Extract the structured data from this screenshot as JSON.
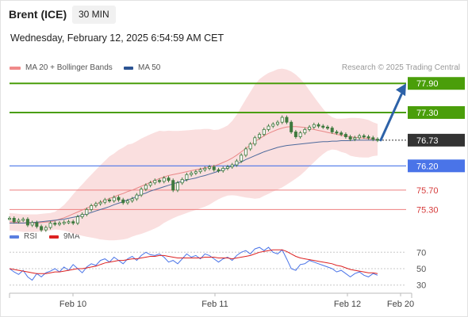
{
  "header": {
    "instrument": "Brent (ICE)",
    "timeframe": "30 MIN",
    "datetime": "Wednesday, February 12, 2025 6:54:59 AM CET",
    "credit": "Research © 2025 Trading Central"
  },
  "colors": {
    "resistance": "#4a9e0a",
    "support_blue": "#4a74e8",
    "support_red": "#ee7f7f",
    "bb_fill": "#fadfdf",
    "ma20": "#e98787",
    "ma50": "#4e6a9c",
    "candle": "#3f7a3f",
    "current": "#333333",
    "arrow": "#2d62a8",
    "rsi": "#4a74e8",
    "rsi_ma": "#dd2222"
  },
  "legend": {
    "ma20_label": "MA 20 + Bollinger Bands",
    "ma50_label": "MA 50",
    "rsi_label": "RSI",
    "rsi_ma_label": "9MA"
  },
  "chart_data": [
    {
      "type": "line",
      "title": "Brent (ICE)",
      "x_ticks": [
        "Feb 10",
        "Feb 11",
        "Feb 12",
        "Feb 20"
      ],
      "ylim": [
        74.8,
        78.1
      ],
      "levels": [
        {
          "value": "77.90",
          "kind": "resistance",
          "style": "box"
        },
        {
          "value": "77.30",
          "kind": "resistance",
          "style": "box"
        },
        {
          "value": "76.73",
          "kind": "current",
          "style": "box"
        },
        {
          "value": "76.20",
          "kind": "support",
          "style": "box"
        },
        {
          "value": "75.70",
          "kind": "support",
          "style": "text"
        },
        {
          "value": "75.30",
          "kind": "support",
          "style": "text"
        }
      ],
      "series": [
        {
          "name": "Price",
          "values": [
            75.12,
            75.05,
            75.08,
            75.1,
            74.98,
            75.03,
            74.95,
            74.88,
            74.93,
            75.02,
            75.0,
            75.02,
            75.04,
            75.05,
            75.02,
            75.15,
            75.2,
            75.3,
            75.38,
            75.42,
            75.45,
            75.5,
            75.48,
            75.55,
            75.5,
            75.44,
            75.48,
            75.52,
            75.6,
            75.72,
            75.8,
            75.85,
            75.9,
            75.88,
            75.95,
            75.9,
            75.7,
            75.85,
            75.92,
            76.02,
            76.05,
            76.08,
            76.12,
            76.15,
            76.18,
            76.12,
            76.1,
            76.15,
            76.18,
            76.22,
            76.3,
            76.42,
            76.55,
            76.65,
            76.78,
            76.85,
            76.95,
            77.02,
            77.06,
            77.1,
            77.2,
            77.1,
            76.9,
            76.8,
            76.88,
            76.95,
            77.0,
            77.05,
            77.02,
            77.0,
            76.98,
            76.9,
            76.88,
            76.85,
            76.8,
            76.75,
            76.78,
            76.82,
            76.8,
            76.78,
            76.75,
            76.73
          ]
        },
        {
          "name": "MA 20",
          "values": [
            75.05,
            75.04,
            75.03,
            75.02,
            75.02,
            75.02,
            75.02,
            75.03,
            75.04,
            75.05,
            75.07,
            75.1,
            75.13,
            75.17,
            75.21,
            75.25,
            75.29,
            75.33,
            75.37,
            75.41,
            75.45,
            75.49,
            75.53,
            75.56,
            75.6,
            75.63,
            75.67,
            75.7,
            75.74,
            75.78,
            75.82,
            75.86,
            75.9,
            75.94,
            75.97,
            76.0,
            76.02,
            76.04,
            76.06,
            76.08,
            76.1,
            76.12,
            76.14,
            76.16,
            76.18,
            76.2,
            76.23,
            76.27,
            76.31,
            76.36,
            76.42,
            76.49,
            76.56,
            76.63,
            76.7,
            76.76,
            76.82,
            76.87,
            76.91,
            76.95,
            76.98,
            77.0,
            77.01,
            77.01,
            77.0,
            76.99,
            76.97,
            76.95,
            76.93,
            76.91,
            76.89,
            76.87,
            76.85,
            76.83,
            76.82,
            76.8,
            76.79,
            76.78,
            76.77,
            76.76,
            76.75,
            76.74
          ]
        },
        {
          "name": "MA 50",
          "values": [
            75.02,
            75.02,
            75.02,
            75.02,
            75.03,
            75.03,
            75.04,
            75.05,
            75.06,
            75.07,
            75.08,
            75.09,
            75.1,
            75.12,
            75.14,
            75.16,
            75.18,
            75.21,
            75.24,
            75.27,
            75.3,
            75.33,
            75.36,
            75.4,
            75.43,
            75.46,
            75.5,
            75.53,
            75.57,
            75.61,
            75.64,
            75.68,
            75.71,
            75.74,
            75.77,
            75.8,
            75.83,
            75.86,
            75.88,
            75.91,
            75.93,
            75.95,
            75.98,
            76.0,
            76.03,
            76.06,
            76.09,
            76.12,
            76.16,
            76.2,
            76.24,
            76.28,
            76.33,
            76.37,
            76.41,
            76.45,
            76.49,
            76.52,
            76.55,
            76.58,
            76.6,
            76.62,
            76.63,
            76.64,
            76.65,
            76.66,
            76.67,
            76.68,
            76.69,
            76.7,
            76.7,
            76.71,
            76.71,
            76.72,
            76.72,
            76.72,
            76.73,
            76.73,
            76.73,
            76.73,
            76.73,
            76.73
          ]
        }
      ]
    },
    {
      "type": "line",
      "ylim": [
        22,
        78
      ],
      "y_ticks": [
        70,
        50,
        30
      ],
      "series": [
        {
          "name": "RSI",
          "values": [
            50,
            46,
            43,
            48,
            40,
            36,
            44,
            40,
            45,
            47,
            50,
            46,
            52,
            48,
            55,
            50,
            45,
            52,
            56,
            54,
            60,
            62,
            58,
            64,
            60,
            56,
            62,
            65,
            60,
            66,
            70,
            67,
            66,
            68,
            64,
            58,
            60,
            56,
            62,
            68,
            64,
            66,
            62,
            68,
            66,
            62,
            58,
            62,
            64,
            60,
            66,
            70,
            72,
            68,
            74,
            76,
            72,
            76,
            70,
            68,
            73,
            62,
            50,
            48,
            55,
            56,
            60,
            58,
            56,
            54,
            52,
            50,
            46,
            48,
            44,
            40,
            44,
            46,
            42,
            40,
            44,
            42
          ]
        },
        {
          "name": "9MA",
          "values": [
            50,
            49,
            48,
            47,
            46,
            45,
            44,
            44,
            44,
            45,
            46,
            46,
            47,
            48,
            49,
            50,
            50,
            51,
            52,
            53,
            55,
            57,
            58,
            59,
            60,
            60,
            61,
            62,
            62,
            63,
            64,
            65,
            65,
            66,
            66,
            65,
            64,
            63,
            63,
            63,
            63,
            63,
            63,
            64,
            64,
            64,
            63,
            63,
            63,
            62,
            63,
            64,
            65,
            66,
            68,
            70,
            71,
            72,
            73,
            73,
            73,
            71,
            68,
            65,
            63,
            62,
            61,
            60,
            59,
            58,
            57,
            56,
            54,
            53,
            51,
            49,
            48,
            47,
            46,
            45,
            45,
            44
          ]
        }
      ]
    }
  ]
}
